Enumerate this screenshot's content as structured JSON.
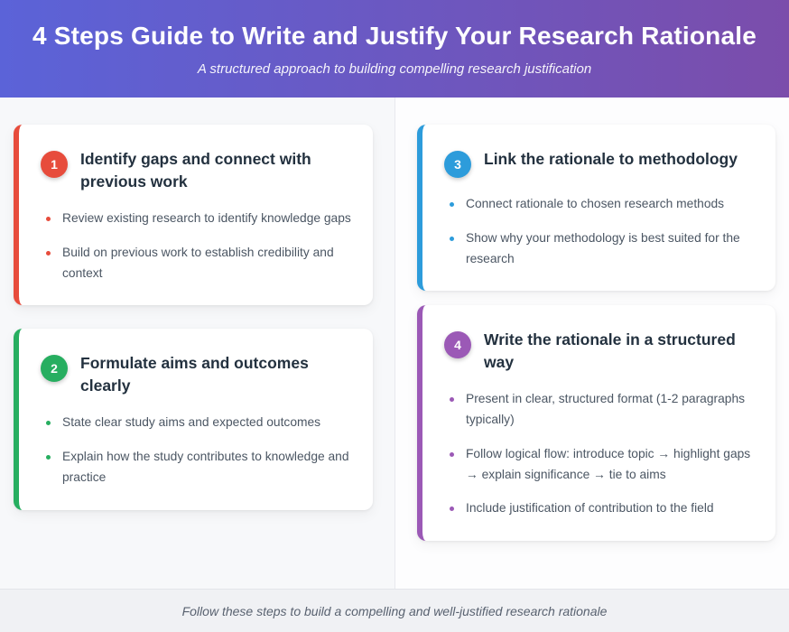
{
  "header": {
    "title": "4 Steps Guide to Write and Justify Your Research Rationale",
    "subtitle": "A structured approach to building compelling research justification",
    "gradient_from": "#5b63d8",
    "gradient_to": "#7b4dab"
  },
  "cards": [
    {
      "number": "1",
      "accent": "#e74c3c",
      "title": "Identify gaps and connect with previous work",
      "bullets": [
        "Review existing research to identify knowledge gaps",
        "Build on previous work to establish credibility and context"
      ]
    },
    {
      "number": "2",
      "accent": "#27ae60",
      "title": "Formulate aims and outcomes clearly",
      "bullets": [
        "State clear study aims and expected outcomes",
        "Explain how the study contributes to knowledge and practice"
      ]
    },
    {
      "number": "3",
      "accent": "#2d9cdb",
      "title": "Link the rationale to methodology",
      "bullets": [
        "Connect rationale to chosen research methods",
        "Show why your methodology is best suited for the research"
      ]
    },
    {
      "number": "4",
      "accent": "#9b59b6",
      "title": "Write the rationale in a structured way",
      "bullets": [
        "Present in clear, structured format (1-2 paragraphs typically)",
        "Follow logical flow: introduce topic → highlight gaps → explain significance → tie to aims",
        "Include justification of contribution to the field"
      ]
    }
  ],
  "footer": {
    "note": "Follow these steps to build a compelling and well-justified research rationale"
  }
}
